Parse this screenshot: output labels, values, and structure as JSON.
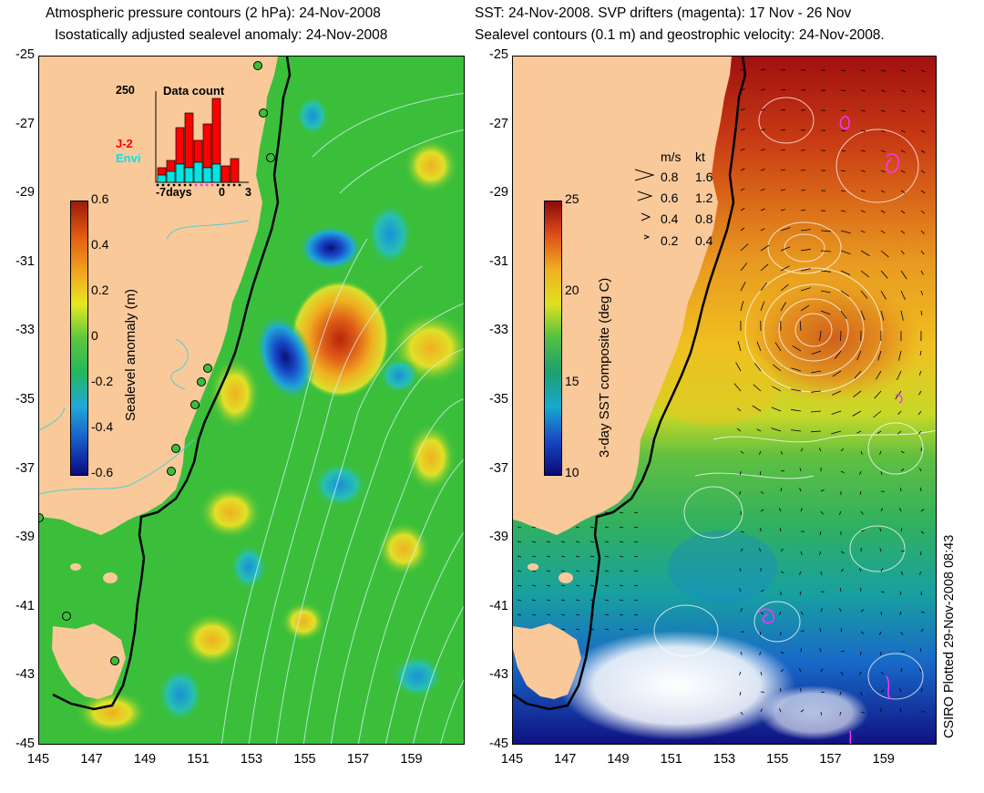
{
  "left_panel": {
    "title_line1": "Atmospheric pressure contours (2 hPa): 24-Nov-2008",
    "title_line2": "Isostatically adjusted sealevel anomaly: 24-Nov-2008",
    "colorbar": {
      "label": "Sealevel anomaly (m)",
      "ticks": [
        "0.6",
        "0.4",
        "0.2",
        "0",
        "-0.2",
        "-0.4",
        "-0.6"
      ],
      "colors": [
        "#9c1a0a",
        "#e15a12",
        "#f0a020",
        "#e8e820",
        "#5cc83c",
        "#22b85c",
        "#20a8d8",
        "#1858c8",
        "#0a0a80"
      ]
    },
    "inset": {
      "title": "Data count",
      "ymax_label": "250",
      "legend": [
        {
          "name": "J-2",
          "color": "#ff0000"
        },
        {
          "name": "Envi",
          "color": "#00e5e5"
        }
      ],
      "xtick_labels": [
        "-7days",
        "0",
        "3"
      ],
      "bars_total": [
        40,
        60,
        150,
        190,
        115,
        160,
        230,
        45,
        65
      ],
      "bars_envi": [
        20,
        30,
        50,
        40,
        55,
        40,
        50,
        0,
        0
      ]
    },
    "x_ticks": [
      "145",
      "147",
      "149",
      "151",
      "153",
      "155",
      "157",
      "159"
    ],
    "y_ticks": [
      "-25",
      "-27",
      "-29",
      "-31",
      "-33",
      "-35",
      "-37",
      "-39",
      "-41",
      "-43",
      "-45"
    ]
  },
  "right_panel": {
    "title_line1": "SST: 24-Nov-2008. SVP drifters (magenta): 17 Nov - 26 Nov",
    "title_line2": "Sealevel contours (0.1 m) and geostrophic velocity: 24-Nov-2008.",
    "colorbar": {
      "label": "3-day SST composite (deg C)",
      "ticks": [
        "25",
        "20",
        "15",
        "10"
      ],
      "colors": [
        "#8c0a0a",
        "#e0501a",
        "#f0b020",
        "#e0e020",
        "#50c040",
        "#1ca070",
        "#18a8d0",
        "#1848c0",
        "#0a0a78"
      ]
    },
    "speed_legend": {
      "header_ms": "m/s",
      "header_kt": "kt",
      "rows": [
        {
          "ms": "0.8",
          "kt": "1.6"
        },
        {
          "ms": "0.6",
          "kt": "1.2"
        },
        {
          "ms": "0.4",
          "kt": "0.8"
        },
        {
          "ms": "0.2",
          "kt": "0.4"
        }
      ]
    },
    "x_ticks": [
      "145",
      "147",
      "149",
      "151",
      "153",
      "155",
      "157",
      "159"
    ],
    "y_ticks": [
      "-25",
      "-27",
      "-29",
      "-31",
      "-33",
      "-35",
      "-37",
      "-39",
      "-41",
      "-43",
      "-45"
    ]
  },
  "footer": "CSIRO Plotted 29-Nov-2008 08:43",
  "colors": {
    "land": "#f9c99a",
    "left_background": "#3bbf3b",
    "white": "#ffffff"
  }
}
